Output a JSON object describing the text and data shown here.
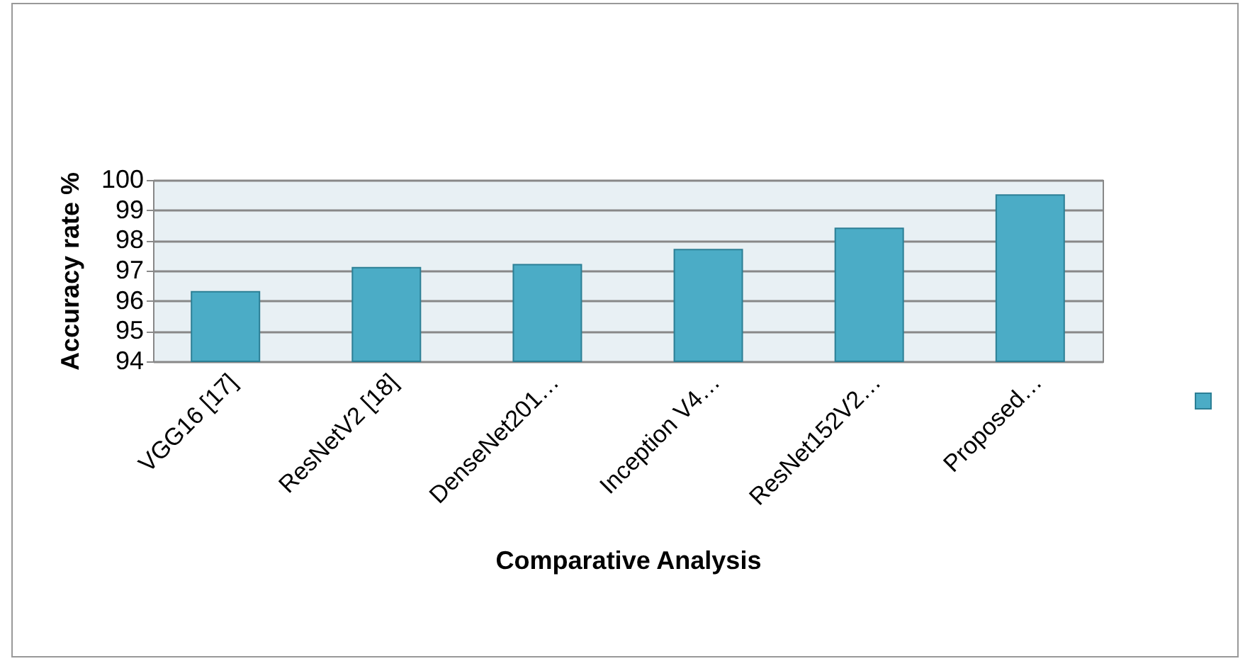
{
  "chart_data": {
    "type": "bar",
    "xlabel": "Comparative Analysis",
    "ylabel": "Accuracy rate %",
    "categories": [
      "VGG16 [17]",
      "ResNetV2 [18]",
      "DenseNet201…",
      "Inception V4…",
      "ResNet152V2…",
      "Proposed…"
    ],
    "series": [
      {
        "color": "#4bacc6",
        "values": [
          96.3,
          97.1,
          97.2,
          97.7,
          98.4,
          99.5
        ]
      }
    ],
    "ylim": [
      94,
      100
    ],
    "yticks": [
      94,
      95,
      96,
      97,
      98,
      99,
      100
    ],
    "grid": "y"
  }
}
